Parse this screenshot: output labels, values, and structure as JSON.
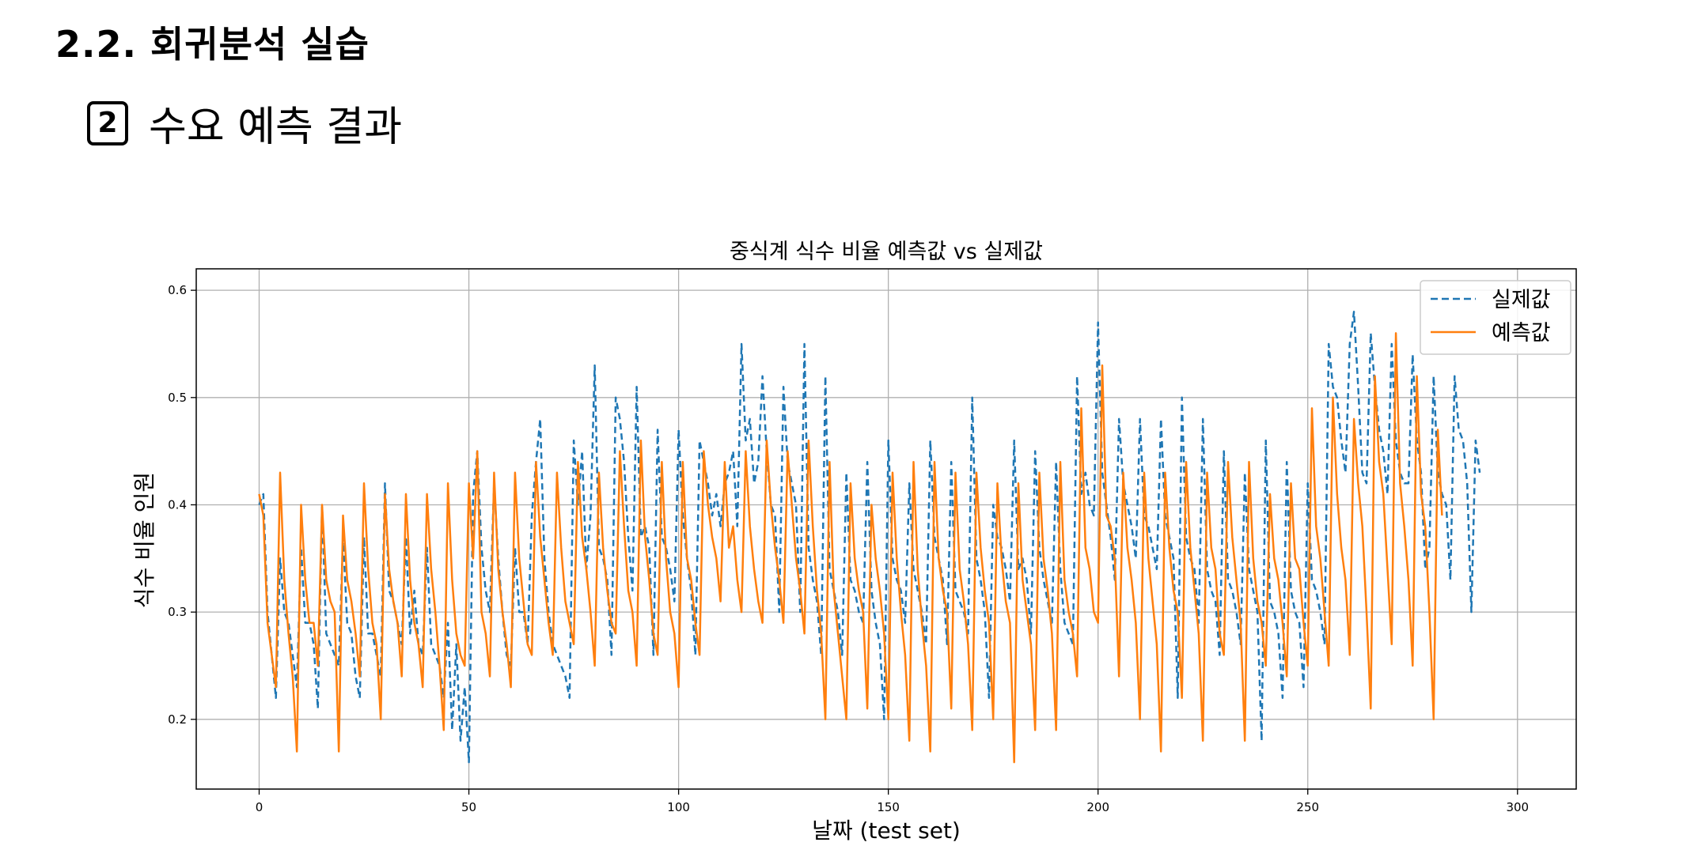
{
  "header": {
    "section_title": "2.2. 회귀분석 실습",
    "step_number": "2",
    "subtitle": "수요 예측 결과"
  },
  "chart_data": {
    "type": "line",
    "title": "중식계 식수 비율 예측값 vs 실제값",
    "xlabel": "날짜 (test set)",
    "ylabel": "식수 비율 인원",
    "xlim": [
      -15,
      314
    ],
    "ylim": [
      0.135,
      0.62
    ],
    "xticks": [
      0,
      50,
      100,
      150,
      200,
      250,
      300
    ],
    "yticks": [
      0.2,
      0.3,
      0.4,
      0.5,
      0.6
    ],
    "grid": true,
    "legend_position": "top-right",
    "series": [
      {
        "name": "실제값",
        "style": "dashed",
        "color": "#1f77b4",
        "values": [
          0.4,
          0.41,
          0.3,
          0.26,
          0.22,
          0.35,
          0.3,
          0.29,
          0.26,
          0.23,
          0.36,
          0.29,
          0.29,
          0.27,
          0.21,
          0.4,
          0.28,
          0.27,
          0.26,
          0.25,
          0.37,
          0.29,
          0.28,
          0.24,
          0.22,
          0.37,
          0.28,
          0.28,
          0.26,
          0.24,
          0.42,
          0.32,
          0.31,
          0.29,
          0.27,
          0.37,
          0.28,
          0.32,
          0.27,
          0.26,
          0.36,
          0.27,
          0.26,
          0.25,
          0.22,
          0.29,
          0.19,
          0.27,
          0.18,
          0.23,
          0.16,
          0.41,
          0.45,
          0.36,
          0.32,
          0.3,
          0.42,
          0.35,
          0.3,
          0.26,
          0.25,
          0.36,
          0.3,
          0.3,
          0.27,
          0.39,
          0.44,
          0.48,
          0.35,
          0.3,
          0.27,
          0.26,
          0.25,
          0.24,
          0.22,
          0.46,
          0.4,
          0.45,
          0.34,
          0.39,
          0.53,
          0.36,
          0.35,
          0.33,
          0.26,
          0.5,
          0.48,
          0.44,
          0.37,
          0.32,
          0.51,
          0.37,
          0.38,
          0.36,
          0.26,
          0.47,
          0.37,
          0.36,
          0.34,
          0.31,
          0.47,
          0.39,
          0.35,
          0.32,
          0.26,
          0.46,
          0.44,
          0.42,
          0.39,
          0.41,
          0.38,
          0.42,
          0.43,
          0.45,
          0.38,
          0.55,
          0.46,
          0.48,
          0.42,
          0.44,
          0.52,
          0.45,
          0.4,
          0.39,
          0.3,
          0.51,
          0.44,
          0.42,
          0.4,
          0.3,
          0.55,
          0.36,
          0.33,
          0.31,
          0.26,
          0.52,
          0.34,
          0.32,
          0.3,
          0.26,
          0.43,
          0.33,
          0.32,
          0.3,
          0.29,
          0.44,
          0.32,
          0.29,
          0.27,
          0.2,
          0.46,
          0.35,
          0.33,
          0.32,
          0.29,
          0.42,
          0.34,
          0.32,
          0.3,
          0.27,
          0.46,
          0.37,
          0.35,
          0.33,
          0.27,
          0.44,
          0.32,
          0.31,
          0.3,
          0.28,
          0.5,
          0.35,
          0.33,
          0.3,
          0.22,
          0.4,
          0.37,
          0.36,
          0.34,
          0.31,
          0.46,
          0.34,
          0.35,
          0.33,
          0.28,
          0.45,
          0.36,
          0.33,
          0.31,
          0.29,
          0.44,
          0.34,
          0.29,
          0.28,
          0.27,
          0.52,
          0.41,
          0.43,
          0.4,
          0.39,
          0.57,
          0.43,
          0.4,
          0.37,
          0.33,
          0.48,
          0.42,
          0.4,
          0.38,
          0.35,
          0.48,
          0.39,
          0.38,
          0.36,
          0.34,
          0.48,
          0.39,
          0.37,
          0.35,
          0.22,
          0.5,
          0.37,
          0.35,
          0.34,
          0.29,
          0.48,
          0.34,
          0.32,
          0.31,
          0.26,
          0.45,
          0.33,
          0.32,
          0.3,
          0.27,
          0.43,
          0.34,
          0.32,
          0.3,
          0.18,
          0.46,
          0.31,
          0.3,
          0.28,
          0.22,
          0.44,
          0.32,
          0.3,
          0.29,
          0.23,
          0.42,
          0.33,
          0.32,
          0.3,
          0.27,
          0.55,
          0.51,
          0.5,
          0.46,
          0.43,
          0.55,
          0.58,
          0.51,
          0.43,
          0.42,
          0.56,
          0.51,
          0.47,
          0.45,
          0.41,
          0.55,
          0.46,
          0.43,
          0.42,
          0.42,
          0.54,
          0.46,
          0.43,
          0.34,
          0.36,
          0.52,
          0.43,
          0.41,
          0.4,
          0.33,
          0.52,
          0.47,
          0.46,
          0.42,
          0.3,
          0.46,
          0.43
        ]
      },
      {
        "name": "예측값",
        "style": "solid",
        "color": "#ff7f0e",
        "values": [
          0.41,
          0.39,
          0.29,
          0.26,
          0.23,
          0.43,
          0.33,
          0.28,
          0.24,
          0.17,
          0.4,
          0.33,
          0.29,
          0.29,
          0.25,
          0.4,
          0.33,
          0.31,
          0.3,
          0.17,
          0.39,
          0.33,
          0.31,
          0.28,
          0.24,
          0.42,
          0.34,
          0.29,
          0.27,
          0.2,
          0.41,
          0.34,
          0.31,
          0.29,
          0.24,
          0.41,
          0.33,
          0.29,
          0.27,
          0.23,
          0.41,
          0.34,
          0.3,
          0.25,
          0.19,
          0.42,
          0.33,
          0.28,
          0.26,
          0.25,
          0.42,
          0.35,
          0.45,
          0.3,
          0.28,
          0.24,
          0.43,
          0.34,
          0.3,
          0.27,
          0.23,
          0.43,
          0.35,
          0.31,
          0.27,
          0.26,
          0.44,
          0.37,
          0.33,
          0.29,
          0.26,
          0.43,
          0.36,
          0.31,
          0.29,
          0.27,
          0.44,
          0.37,
          0.34,
          0.3,
          0.25,
          0.43,
          0.36,
          0.32,
          0.29,
          0.28,
          0.45,
          0.38,
          0.32,
          0.3,
          0.25,
          0.46,
          0.37,
          0.33,
          0.28,
          0.26,
          0.44,
          0.35,
          0.3,
          0.28,
          0.23,
          0.44,
          0.35,
          0.33,
          0.29,
          0.26,
          0.45,
          0.4,
          0.37,
          0.35,
          0.31,
          0.44,
          0.36,
          0.38,
          0.33,
          0.3,
          0.45,
          0.38,
          0.34,
          0.31,
          0.29,
          0.46,
          0.4,
          0.36,
          0.33,
          0.29,
          0.45,
          0.4,
          0.35,
          0.32,
          0.28,
          0.46,
          0.38,
          0.32,
          0.28,
          0.2,
          0.44,
          0.32,
          0.28,
          0.24,
          0.2,
          0.42,
          0.35,
          0.32,
          0.3,
          0.21,
          0.4,
          0.35,
          0.32,
          0.28,
          0.2,
          0.43,
          0.35,
          0.3,
          0.26,
          0.18,
          0.44,
          0.34,
          0.29,
          0.25,
          0.17,
          0.44,
          0.35,
          0.32,
          0.3,
          0.21,
          0.43,
          0.34,
          0.31,
          0.27,
          0.19,
          0.43,
          0.36,
          0.32,
          0.29,
          0.2,
          0.42,
          0.35,
          0.31,
          0.29,
          0.16,
          0.42,
          0.33,
          0.3,
          0.27,
          0.19,
          0.43,
          0.35,
          0.32,
          0.28,
          0.19,
          0.44,
          0.33,
          0.3,
          0.28,
          0.24,
          0.49,
          0.36,
          0.34,
          0.3,
          0.29,
          0.53,
          0.39,
          0.38,
          0.35,
          0.24,
          0.43,
          0.36,
          0.33,
          0.29,
          0.2,
          0.43,
          0.35,
          0.31,
          0.27,
          0.17,
          0.43,
          0.36,
          0.32,
          0.3,
          0.22,
          0.44,
          0.36,
          0.32,
          0.28,
          0.18,
          0.43,
          0.36,
          0.34,
          0.28,
          0.26,
          0.44,
          0.37,
          0.33,
          0.29,
          0.18,
          0.44,
          0.35,
          0.31,
          0.29,
          0.25,
          0.41,
          0.35,
          0.33,
          0.29,
          0.24,
          0.42,
          0.35,
          0.34,
          0.29,
          0.25,
          0.49,
          0.38,
          0.35,
          0.3,
          0.25,
          0.5,
          0.41,
          0.36,
          0.33,
          0.26,
          0.48,
          0.42,
          0.38,
          0.3,
          0.21,
          0.52,
          0.44,
          0.41,
          0.34,
          0.27,
          0.56,
          0.42,
          0.38,
          0.33,
          0.25,
          0.52,
          0.41,
          0.38,
          0.3,
          0.2,
          0.47,
          0.39
        ]
      }
    ]
  }
}
